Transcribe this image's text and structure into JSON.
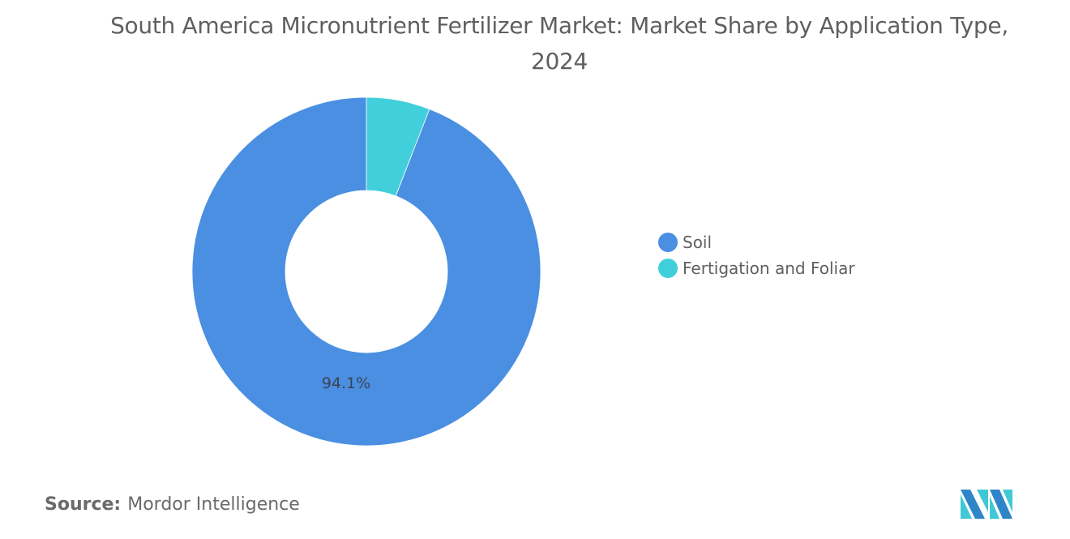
{
  "chart_data": {
    "type": "pie",
    "variant": "donut",
    "title": "South America Micronutrient Fertilizer Market: Market Share by Application Type, 2024",
    "categories": [
      "Soil",
      "Fertigation and Foliar"
    ],
    "values": [
      94.1,
      5.9
    ],
    "unit": "%",
    "colors": [
      "#4a8fe2",
      "#41d0db"
    ],
    "data_labels": [
      {
        "category": "Soil",
        "text": "94.1%"
      }
    ],
    "legend_position": "right"
  },
  "title": "South America Micronutrient Fertilizer Market: Market Share by Application Type, 2024",
  "slice_label": "94.1%",
  "legend": [
    {
      "label": "Soil",
      "color": "#4a8fe2"
    },
    {
      "label": "Fertigation and Foliar",
      "color": "#41d0db"
    }
  ],
  "source": {
    "prefix": "Source:",
    "name": "Mordor Intelligence"
  },
  "logo": {
    "icon": "mordor-intelligence-logo",
    "colors": [
      "#2e86c8",
      "#41c8d6"
    ]
  }
}
